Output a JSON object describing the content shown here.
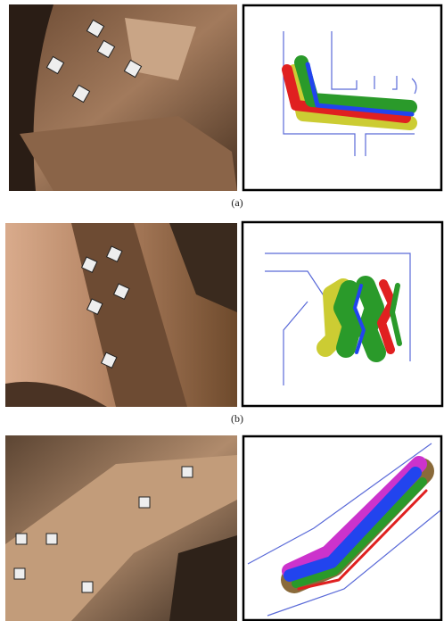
{
  "figure": {
    "captions": [
      "(a)",
      "(b)"
    ]
  }
}
